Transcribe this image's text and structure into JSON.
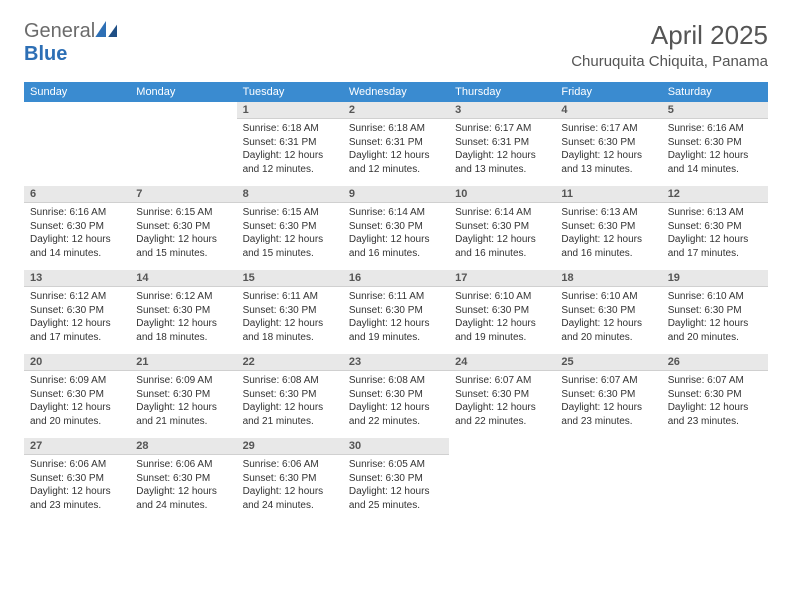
{
  "brand": {
    "name_gray": "General",
    "name_blue": "Blue"
  },
  "title": {
    "month": "April 2025",
    "location": "Churuquita Chiquita, Panama"
  },
  "colors": {
    "header_bg": "#3a8bd0",
    "header_fg": "#ffffff",
    "daynum_bg": "#e8e8e8",
    "text": "#333333",
    "brand_gray": "#6b6b6b",
    "brand_blue": "#2d6fb5"
  },
  "weekdays": [
    "Sunday",
    "Monday",
    "Tuesday",
    "Wednesday",
    "Thursday",
    "Friday",
    "Saturday"
  ],
  "weeks": [
    [
      null,
      null,
      {
        "n": 1,
        "sunrise": "6:18 AM",
        "sunset": "6:31 PM",
        "daylight": "12 hours and 12 minutes."
      },
      {
        "n": 2,
        "sunrise": "6:18 AM",
        "sunset": "6:31 PM",
        "daylight": "12 hours and 12 minutes."
      },
      {
        "n": 3,
        "sunrise": "6:17 AM",
        "sunset": "6:31 PM",
        "daylight": "12 hours and 13 minutes."
      },
      {
        "n": 4,
        "sunrise": "6:17 AM",
        "sunset": "6:30 PM",
        "daylight": "12 hours and 13 minutes."
      },
      {
        "n": 5,
        "sunrise": "6:16 AM",
        "sunset": "6:30 PM",
        "daylight": "12 hours and 14 minutes."
      }
    ],
    [
      {
        "n": 6,
        "sunrise": "6:16 AM",
        "sunset": "6:30 PM",
        "daylight": "12 hours and 14 minutes."
      },
      {
        "n": 7,
        "sunrise": "6:15 AM",
        "sunset": "6:30 PM",
        "daylight": "12 hours and 15 minutes."
      },
      {
        "n": 8,
        "sunrise": "6:15 AM",
        "sunset": "6:30 PM",
        "daylight": "12 hours and 15 minutes."
      },
      {
        "n": 9,
        "sunrise": "6:14 AM",
        "sunset": "6:30 PM",
        "daylight": "12 hours and 16 minutes."
      },
      {
        "n": 10,
        "sunrise": "6:14 AM",
        "sunset": "6:30 PM",
        "daylight": "12 hours and 16 minutes."
      },
      {
        "n": 11,
        "sunrise": "6:13 AM",
        "sunset": "6:30 PM",
        "daylight": "12 hours and 16 minutes."
      },
      {
        "n": 12,
        "sunrise": "6:13 AM",
        "sunset": "6:30 PM",
        "daylight": "12 hours and 17 minutes."
      }
    ],
    [
      {
        "n": 13,
        "sunrise": "6:12 AM",
        "sunset": "6:30 PM",
        "daylight": "12 hours and 17 minutes."
      },
      {
        "n": 14,
        "sunrise": "6:12 AM",
        "sunset": "6:30 PM",
        "daylight": "12 hours and 18 minutes."
      },
      {
        "n": 15,
        "sunrise": "6:11 AM",
        "sunset": "6:30 PM",
        "daylight": "12 hours and 18 minutes."
      },
      {
        "n": 16,
        "sunrise": "6:11 AM",
        "sunset": "6:30 PM",
        "daylight": "12 hours and 19 minutes."
      },
      {
        "n": 17,
        "sunrise": "6:10 AM",
        "sunset": "6:30 PM",
        "daylight": "12 hours and 19 minutes."
      },
      {
        "n": 18,
        "sunrise": "6:10 AM",
        "sunset": "6:30 PM",
        "daylight": "12 hours and 20 minutes."
      },
      {
        "n": 19,
        "sunrise": "6:10 AM",
        "sunset": "6:30 PM",
        "daylight": "12 hours and 20 minutes."
      }
    ],
    [
      {
        "n": 20,
        "sunrise": "6:09 AM",
        "sunset": "6:30 PM",
        "daylight": "12 hours and 20 minutes."
      },
      {
        "n": 21,
        "sunrise": "6:09 AM",
        "sunset": "6:30 PM",
        "daylight": "12 hours and 21 minutes."
      },
      {
        "n": 22,
        "sunrise": "6:08 AM",
        "sunset": "6:30 PM",
        "daylight": "12 hours and 21 minutes."
      },
      {
        "n": 23,
        "sunrise": "6:08 AM",
        "sunset": "6:30 PM",
        "daylight": "12 hours and 22 minutes."
      },
      {
        "n": 24,
        "sunrise": "6:07 AM",
        "sunset": "6:30 PM",
        "daylight": "12 hours and 22 minutes."
      },
      {
        "n": 25,
        "sunrise": "6:07 AM",
        "sunset": "6:30 PM",
        "daylight": "12 hours and 23 minutes."
      },
      {
        "n": 26,
        "sunrise": "6:07 AM",
        "sunset": "6:30 PM",
        "daylight": "12 hours and 23 minutes."
      }
    ],
    [
      {
        "n": 27,
        "sunrise": "6:06 AM",
        "sunset": "6:30 PM",
        "daylight": "12 hours and 23 minutes."
      },
      {
        "n": 28,
        "sunrise": "6:06 AM",
        "sunset": "6:30 PM",
        "daylight": "12 hours and 24 minutes."
      },
      {
        "n": 29,
        "sunrise": "6:06 AM",
        "sunset": "6:30 PM",
        "daylight": "12 hours and 24 minutes."
      },
      {
        "n": 30,
        "sunrise": "6:05 AM",
        "sunset": "6:30 PM",
        "daylight": "12 hours and 25 minutes."
      },
      null,
      null,
      null
    ]
  ],
  "labels": {
    "sunrise": "Sunrise:",
    "sunset": "Sunset:",
    "daylight": "Daylight:"
  }
}
